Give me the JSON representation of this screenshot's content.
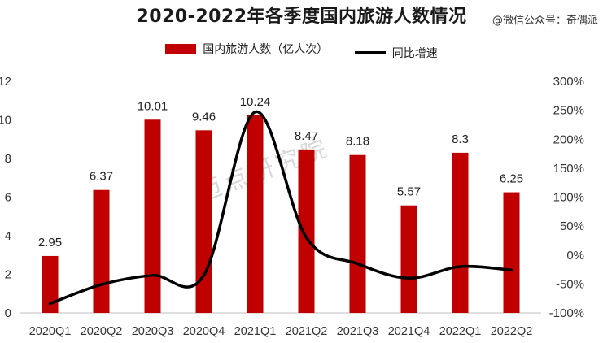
{
  "title": "2020-2022年各季度国内旅游人数情况",
  "source_note": "@微信公众号：奇偶派",
  "watermark": "迈点研究院",
  "colors": {
    "bar": "#c00000",
    "line": "#000000"
  },
  "chart_data": {
    "type": "bar",
    "categories": [
      "2020Q1",
      "2020Q2",
      "2020Q3",
      "2020Q4",
      "2021Q1",
      "2021Q2",
      "2021Q3",
      "2021Q4",
      "2022Q1",
      "2022Q2"
    ],
    "series": [
      {
        "name": "国内旅游人数（亿人次）",
        "type": "bar",
        "axis": "left",
        "values": [
          2.95,
          6.37,
          10.01,
          9.46,
          10.24,
          8.47,
          8.18,
          5.57,
          8.3,
          6.25
        ]
      },
      {
        "name": "同比增速",
        "type": "line",
        "axis": "right",
        "values": [
          -84,
          -51,
          -35,
          -35,
          247,
          30,
          -15,
          -40,
          -20,
          -26
        ]
      }
    ],
    "y_left": {
      "lim": [
        0,
        12
      ],
      "ticks": [
        "0",
        "2",
        "4",
        "6",
        "8",
        "10",
        "12"
      ]
    },
    "y_right": {
      "lim": [
        -100,
        300
      ],
      "ticks": [
        "-100%",
        "-50%",
        "0%",
        "50%",
        "100%",
        "150%",
        "200%",
        "250%",
        "300%"
      ]
    },
    "legend_position": "top",
    "grid": false
  }
}
